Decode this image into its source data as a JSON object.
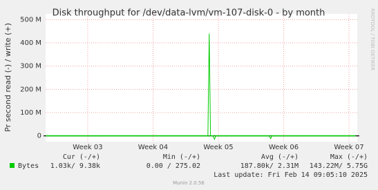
{
  "chart_data": {
    "type": "line",
    "title": "Disk throughput for /dev/data-lvm/vm-107-disk-0 - by month",
    "y_label": "Pr second read (-) / write (+)",
    "side_text": "RRDTOOL / TOBI OETIKER",
    "footer": "Munin 2.0.56",
    "xlim": [
      2.355,
      7.127
    ],
    "xticks": [
      {
        "value": 3,
        "label": "Week 03"
      },
      {
        "value": 4,
        "label": "Week 04"
      },
      {
        "value": 5,
        "label": "Week 05"
      },
      {
        "value": 6,
        "label": "Week 06"
      },
      {
        "value": 7,
        "label": "Week 07"
      }
    ],
    "ylim": [
      -25000000,
      525000000
    ],
    "yticks": [
      {
        "value": 0,
        "label": "0"
      },
      {
        "value": 100000000,
        "label": "100 M"
      },
      {
        "value": 200000000,
        "label": "200 M"
      },
      {
        "value": 300000000,
        "label": "300 M"
      },
      {
        "value": 400000000,
        "label": "400 M"
      },
      {
        "value": 500000000,
        "label": "500 M"
      }
    ],
    "grid": true,
    "series": [
      {
        "name": "Bytes",
        "color": "#00cc00",
        "x": [
          2.36,
          4.84,
          4.86,
          4.88,
          7.1
        ],
        "values": [
          1000000,
          1000000,
          440000000,
          1000000,
          1000000
        ]
      },
      {
        "color": "#00cc00",
        "x": [
          2.36,
          4.92,
          4.94,
          4.96,
          5.78,
          5.8,
          5.82,
          7.1
        ],
        "values": [
          -1000000,
          -1000000,
          -15000000,
          -1000000,
          -1000000,
          -12000000,
          -1000000,
          -1000000
        ]
      }
    ],
    "stats": {
      "headers": [
        "Cur (-/+)",
        "Min (-/+)",
        "Avg (-/+)",
        "Max (-/+)"
      ],
      "cells": [
        "1.03k/   9.38k",
        "0.00 / 275.02",
        "187.80k/   2.31M",
        "143.22M/   5.75G"
      ],
      "last_update": "Last update: Fri Feb 14 09:05:10 2025"
    }
  }
}
